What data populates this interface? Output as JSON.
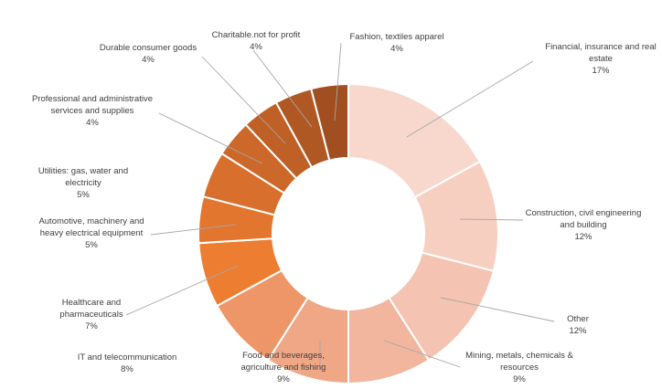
{
  "chart_data": {
    "type": "pie",
    "variant": "donut",
    "title": "",
    "slices": [
      {
        "label": "Financial, insurance and real estate",
        "value": 17,
        "value_label": "17%",
        "color": "#F8D8CD"
      },
      {
        "label": "Construction, civil engineering and building",
        "value": 12,
        "value_label": "12%",
        "color": "#F6CFC1"
      },
      {
        "label": "Other",
        "value": 12,
        "value_label": "12%",
        "color": "#F4C3B1"
      },
      {
        "label": "Mining, metals, chemicals & resources",
        "value": 9,
        "value_label": "9%",
        "color": "#F2B69F"
      },
      {
        "label": "Food and beverages, agriculture and fishing",
        "value": 9,
        "value_label": "9%",
        "color": "#F0A786"
      },
      {
        "label": "IT and telecommunication",
        "value": 8,
        "value_label": "8%",
        "color": "#EE9668"
      },
      {
        "label": "Healthcare and pharmaceuticals",
        "value": 7,
        "value_label": "7%",
        "color": "#ED7D31"
      },
      {
        "label": "Automotive, machinery and heavy electrical equipment",
        "value": 5,
        "value_label": "5%",
        "color": "#E2762F"
      },
      {
        "label": "Utilities: gas, water and electricity",
        "value": 5,
        "value_label": "5%",
        "color": "#D86F2C"
      },
      {
        "label": "Professional and administrative services and supplies",
        "value": 4,
        "value_label": "4%",
        "color": "#CC682A"
      },
      {
        "label": "Durable consumer goods",
        "value": 4,
        "value_label": "4%",
        "color": "#BF6027"
      },
      {
        "label": "Charitable.not for profit",
        "value": 4,
        "value_label": "4%",
        "color": "#B05824"
      },
      {
        "label": "Fashion, textiles apparel",
        "value": 4,
        "value_label": "4%",
        "color": "#A14F20"
      }
    ],
    "legend": "none",
    "data_labels": "outside with leader lines"
  }
}
